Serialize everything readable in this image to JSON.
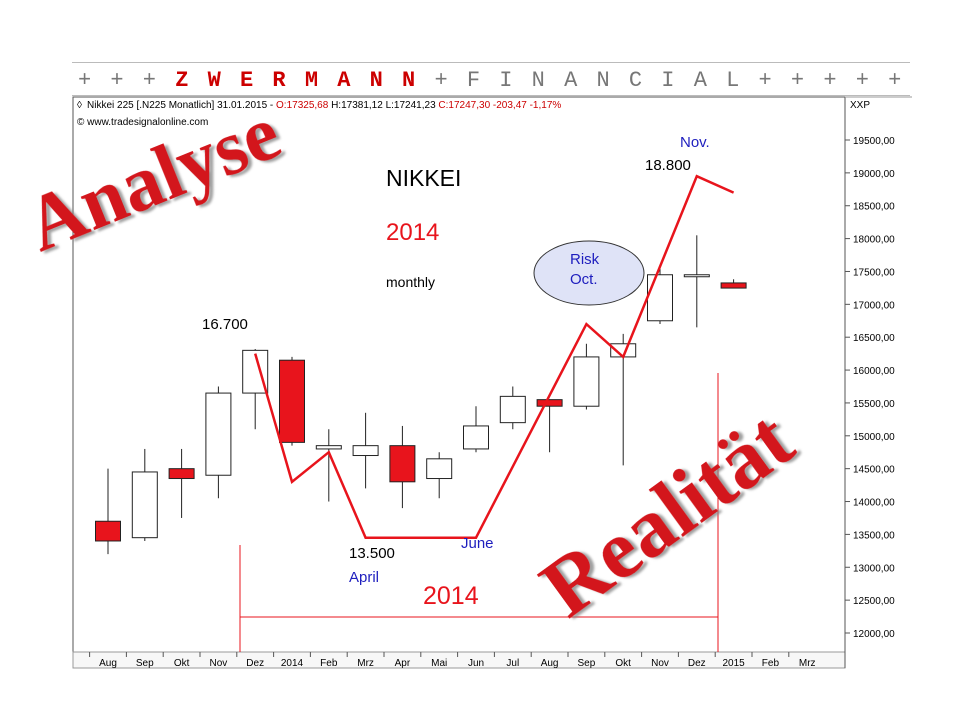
{
  "banner": {
    "prefix": "+ + + ",
    "brand": "Z W E R M A N N",
    "suffix": " + F I N A N C I A L + + + + +"
  },
  "header": {
    "symbol": "Nikkei 225 [.N225 Monatlich]",
    "date": "31.01.2015",
    "open": "O:17325,68",
    "high": "H:17381,12",
    "low": "L:17241,23",
    "close": "C:17247,30 -203,47 -1,17%",
    "source": "© www.tradesignalonline.com",
    "axis_label": "XXP"
  },
  "colors": {
    "up": "#ffffff",
    "down": "#e8141c",
    "annotation": "#e8141c",
    "blue_text": "#1e1ebe",
    "risk_fill": "#dfe3f7"
  },
  "chart_data": {
    "type": "candlestick",
    "title": "NIKKEI",
    "subtitle": "2014",
    "note": "monthly",
    "ylim": [
      11900,
      19950
    ],
    "y_ticks": [
      "12000,00",
      "12500,00",
      "13000,00",
      "13500,00",
      "14000,00",
      "14500,00",
      "15000,00",
      "15500,00",
      "16000,00",
      "16500,00",
      "17000,00",
      "17500,00",
      "18000,00",
      "18500,00",
      "19000,00",
      "19500,00"
    ],
    "x_labels": [
      "Aug",
      "Sep",
      "Okt",
      "Nov",
      "Dez",
      "2014",
      "Feb",
      "Mrz",
      "Apr",
      "Mai",
      "Jun",
      "Jul",
      "Aug",
      "Sep",
      "Okt",
      "Nov",
      "Dez",
      "2015",
      "Feb",
      "Mrz"
    ],
    "candles": [
      {
        "period": "Aug",
        "open": 13700,
        "high": 14500,
        "low": 13200,
        "close": 13400
      },
      {
        "period": "Sep",
        "open": 13450,
        "high": 14800,
        "low": 13400,
        "close": 14450
      },
      {
        "period": "Okt",
        "open": 14500,
        "high": 14800,
        "low": 13750,
        "close": 14350
      },
      {
        "period": "Nov",
        "open": 14400,
        "high": 15750,
        "low": 14050,
        "close": 15650
      },
      {
        "period": "Dez",
        "open": 15650,
        "high": 16320,
        "low": 15100,
        "close": 16300
      },
      {
        "period": "2014",
        "open": 16150,
        "high": 16200,
        "low": 14850,
        "close": 14900
      },
      {
        "period": "Feb",
        "open": 14800,
        "high": 15100,
        "low": 14000,
        "close": 14850
      },
      {
        "period": "Mrz",
        "open": 14700,
        "high": 15350,
        "low": 14200,
        "close": 14850
      },
      {
        "period": "Apr",
        "open": 14850,
        "high": 15150,
        "low": 13900,
        "close": 14300
      },
      {
        "period": "Mai",
        "open": 14350,
        "high": 14750,
        "low": 14050,
        "close": 14650
      },
      {
        "period": "Jun",
        "open": 14800,
        "high": 15450,
        "low": 14750,
        "close": 15150
      },
      {
        "period": "Jul",
        "open": 15200,
        "high": 15750,
        "low": 15100,
        "close": 15600
      },
      {
        "period": "Aug",
        "open": 15550,
        "high": 15550,
        "low": 14750,
        "close": 15450
      },
      {
        "period": "Sep",
        "open": 15450,
        "high": 16400,
        "low": 15400,
        "close": 16200
      },
      {
        "period": "Okt",
        "open": 16200,
        "high": 16550,
        "low": 14550,
        "close": 16400
      },
      {
        "period": "Nov",
        "open": 16750,
        "high": 17550,
        "low": 16700,
        "close": 17450
      },
      {
        "period": "Dez",
        "open": 17450,
        "high": 18050,
        "low": 16650,
        "close": 17450
      },
      {
        "period": "2015",
        "open": 17325.68,
        "high": 17381.12,
        "low": 17241.23,
        "close": 17247.3
      }
    ],
    "forecast_line": [
      {
        "period_index": 4.5,
        "value": 16250
      },
      {
        "period_index": 5.5,
        "value": 14300
      },
      {
        "period_index": 6.5,
        "value": 14750
      },
      {
        "period_index": 7.5,
        "value": 13450
      },
      {
        "period_index": 10.5,
        "value": 13450
      },
      {
        "period_index": 13.5,
        "value": 16700
      },
      {
        "period_index": 14.5,
        "value": 16200
      },
      {
        "period_index": 16.5,
        "value": 18950
      },
      {
        "period_index": 17.5,
        "value": 18700
      }
    ],
    "period_label": "2014"
  },
  "annotations": {
    "analyse": "Analyse",
    "realitaet": "Realität",
    "label_16700": "16.700",
    "label_13500": "13.500",
    "label_april": "April",
    "label_june": "June",
    "label_18800": "18.800",
    "label_nov": "Nov.",
    "risk_line1": "Risk",
    "risk_line2": "Oct."
  }
}
